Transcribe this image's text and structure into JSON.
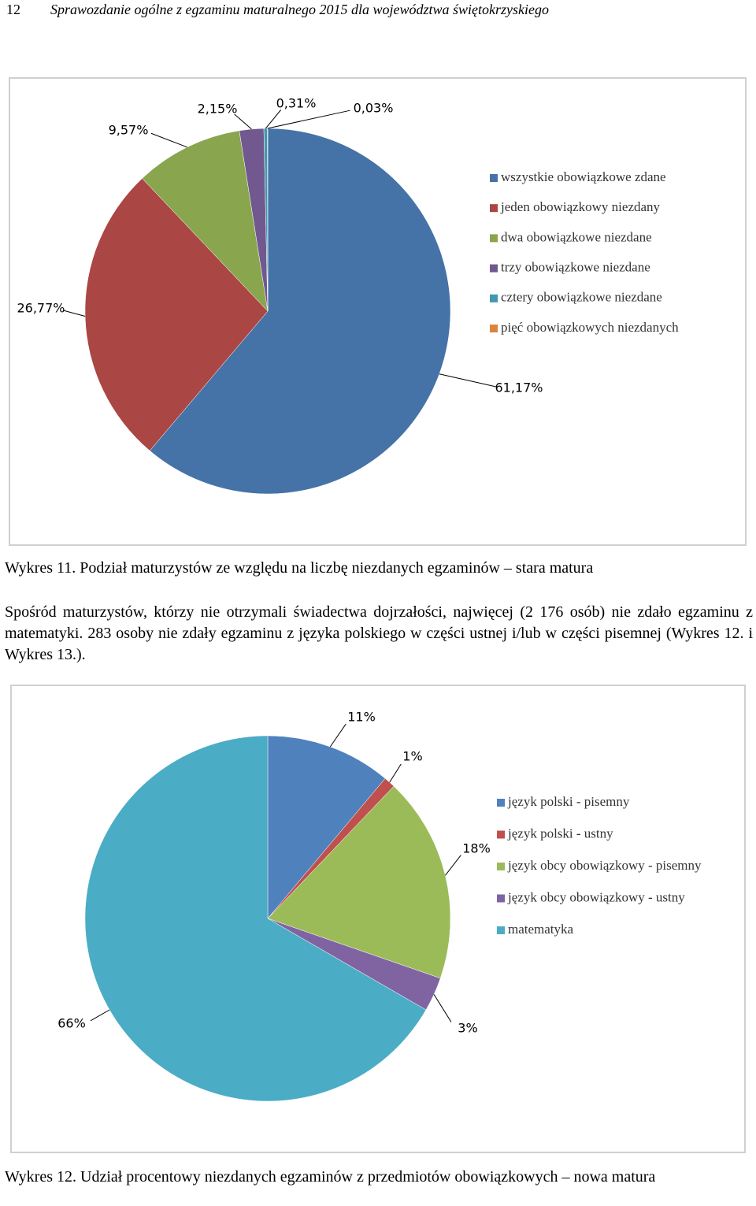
{
  "header": {
    "page_number": "12",
    "title": "Sprawozdanie ogólne z egzaminu maturalnego 2015 dla województwa świętokrzyskiego"
  },
  "chart_data": [
    {
      "type": "pie",
      "categories": [
        "wszystkie obowiązkowe zdane",
        "jeden obowiązkowy niezdany",
        "dwa obowiązkowe niezdane",
        "trzy obowiązkowe niezdane",
        "cztery obowiązkowe niezdane",
        "pięć obowiązkowych niezdanych"
      ],
      "values": [
        61.17,
        26.77,
        9.57,
        2.15,
        0.31,
        0.03
      ],
      "value_labels": [
        "61,17%",
        "26,77%",
        "9,57%",
        "2,15%",
        "0,31%",
        "0,03%"
      ],
      "colors": [
        "#4572a7",
        "#aa4643",
        "#89a54e",
        "#71588f",
        "#4198af",
        "#db843d"
      ],
      "caption": "Wykres 11. Podział maturzystów ze względu na liczbę niezdanych egzaminów – stara matura"
    },
    {
      "type": "pie",
      "categories": [
        "język polski - pisemny",
        "język polski - ustny",
        "język obcy obowiązkowy - pisemny",
        "język obcy obowiązkowy - ustny",
        "matematyka"
      ],
      "values": [
        11,
        1,
        18,
        3,
        66
      ],
      "value_labels": [
        "11%",
        "1%",
        "18%",
        "3%",
        "66%"
      ],
      "colors": [
        "#4f81bd",
        "#c0504d",
        "#9bbb59",
        "#8064a2",
        "#4bacc6"
      ],
      "caption": "Wykres 12. Udział procentowy niezdanych egzaminów z przedmiotów obowiązkowych – nowa matura"
    }
  ],
  "paragraph": "Spośród maturzystów, którzy nie otrzymali świadectwa dojrzałości, najwięcej (2 176 osób) nie zdało egzaminu z matematyki. 283 osoby nie zdały egzaminu z języka polskiego w części ustnej i/lub w części pisemnej (Wykres 12. i Wykres 13.)."
}
